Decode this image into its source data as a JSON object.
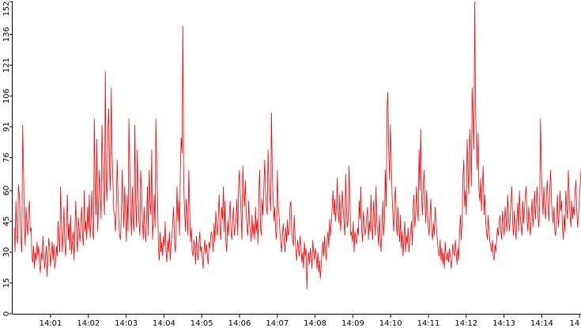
{
  "chart_data": {
    "type": "line",
    "title": "",
    "xlabel": "",
    "ylabel": "",
    "ylim": [
      0,
      152
    ],
    "xlim_minutes": [
      14.0,
      14.933
    ],
    "grid": false,
    "legend": "none",
    "colors": {
      "line": "#ff0000",
      "axis": "#000000",
      "background": "#ffffff"
    },
    "y_ticks": [
      {
        "value": 0,
        "label": "0"
      },
      {
        "value": 15,
        "label": "15"
      },
      {
        "value": 30,
        "label": "30"
      },
      {
        "value": 45,
        "label": "45"
      },
      {
        "value": 60,
        "label": "60"
      },
      {
        "value": 76,
        "label": "76"
      },
      {
        "value": 91,
        "label": "91"
      },
      {
        "value": 106,
        "label": "106"
      },
      {
        "value": 121,
        "label": "121"
      },
      {
        "value": 136,
        "label": "136"
      },
      {
        "value": 152,
        "label": "152"
      }
    ],
    "x_ticks": [
      {
        "label": "14:01",
        "minute": 1
      },
      {
        "label": "14:02",
        "minute": 2
      },
      {
        "label": "14:03",
        "minute": 3
      },
      {
        "label": "14:04",
        "minute": 4
      },
      {
        "label": "14:05",
        "minute": 5
      },
      {
        "label": "14:06",
        "minute": 6
      },
      {
        "label": "14:07",
        "minute": 7
      },
      {
        "label": "14:08",
        "minute": 8
      },
      {
        "label": "14:09",
        "minute": 9
      },
      {
        "label": "14:10",
        "minute": 10
      },
      {
        "label": "14:11",
        "minute": 11
      },
      {
        "label": "14:12",
        "minute": 12
      },
      {
        "label": "14:13",
        "minute": 13
      },
      {
        "label": "14:14",
        "minute": 14
      },
      {
        "label": "14",
        "minute": 15
      }
    ],
    "series": [
      {
        "values": [
          42,
          30,
          55,
          38,
          34,
          63,
          58,
          48,
          36,
          30,
          92,
          70,
          45,
          33,
          52,
          44,
          38,
          49,
          55,
          40,
          42,
          28,
          25,
          33,
          22,
          30,
          26,
          35,
          28,
          33,
          24,
          20,
          30,
          26,
          38,
          29,
          22,
          27,
          33,
          18,
          28,
          37,
          32,
          23,
          29,
          35,
          26,
          34,
          22,
          25,
          33,
          28,
          45,
          36,
          30,
          62,
          44,
          30,
          40,
          52,
          33,
          28,
          42,
          58,
          36,
          44,
          31,
          48,
          29,
          35,
          40,
          26,
          42,
          55,
          38,
          30,
          47,
          41,
          35,
          44,
          52,
          38,
          33,
          60,
          40,
          45,
          36,
          52,
          41,
          58,
          37,
          45,
          60,
          40,
          36,
          95,
          62,
          48,
          85,
          40,
          54,
          70,
          58,
          46,
          92,
          75,
          60,
          48,
          118,
          65,
          55,
          88,
          100,
          72,
          60,
          110,
          78,
          65,
          50,
          48,
          40,
          52,
          75,
          60,
          45,
          38,
          36,
          48,
          70,
          55,
          42,
          62,
          50,
          35,
          58,
          40,
          95,
          70,
          50,
          38,
          62,
          46,
          40,
          92,
          54,
          42,
          80,
          58,
          44,
          38,
          70,
          60,
          45,
          36,
          52,
          40,
          35,
          48,
          62,
          38,
          70,
          55,
          48,
          80,
          36,
          45,
          58,
          42,
          95,
          70,
          55,
          32,
          26,
          40,
          30,
          35,
          28,
          38,
          33,
          45,
          30,
          25,
          36,
          30,
          40,
          26,
          34,
          38,
          45,
          52,
          36,
          30,
          40,
          62,
          45,
          55,
          38,
          70,
          86,
          78,
          140,
          62,
          50,
          40,
          56,
          48,
          38,
          70,
          52,
          35,
          42,
          30,
          28,
          36,
          33,
          24,
          38,
          30,
          26,
          34,
          40,
          30,
          33,
          27,
          22,
          31,
          36,
          29,
          34,
          28,
          24,
          35,
          32,
          38,
          40,
          36,
          30,
          44,
          35,
          50,
          42,
          38,
          48,
          58,
          42,
          36,
          52,
          46,
          62,
          40,
          55,
          35,
          30,
          45,
          38,
          48,
          55,
          40,
          36,
          46,
          52,
          38,
          42,
          45,
          56,
          38,
          62,
          70,
          58,
          48,
          36,
          72,
          60,
          52,
          65,
          50,
          42,
          38,
          55,
          44,
          40,
          35,
          48,
          38,
          44,
          36,
          52,
          40,
          46,
          34,
          58,
          70,
          42,
          38,
          56,
          48,
          62,
          75,
          60,
          52,
          48,
          80,
          62,
          58,
          50,
          98,
          68,
          56,
          45,
          52,
          40,
          36,
          70,
          52,
          48,
          40,
          35,
          30,
          38,
          44,
          36,
          30,
          42,
          35,
          46,
          38,
          40,
          52,
          55,
          40,
          36,
          33,
          48,
          38,
          30,
          26,
          36,
          32,
          28,
          38,
          33,
          25,
          30,
          22,
          35,
          28,
          32,
          12,
          26,
          30,
          24,
          32,
          28,
          22,
          36,
          30,
          26,
          32,
          28,
          22,
          30,
          20,
          26,
          17,
          24,
          30,
          35,
          28,
          38,
          30,
          26,
          36,
          40,
          32,
          46,
          38,
          44,
          52,
          60,
          48,
          56,
          45,
          52,
          66,
          50,
          44,
          58,
          40,
          48,
          60,
          52,
          44,
          38,
          68,
          50,
          42,
          46,
          72,
          54,
          38,
          40,
          35,
          45,
          30,
          40,
          36,
          34,
          42,
          38,
          55,
          46,
          62,
          40,
          35,
          50,
          44,
          38,
          42,
          48,
          52,
          36,
          45,
          40,
          58,
          42,
          36,
          55,
          48,
          38,
          62,
          44,
          40,
          33,
          48,
          36,
          30,
          42,
          55,
          38,
          46,
          70,
          52,
          100,
          108,
          80,
          65,
          92,
          75,
          58,
          48,
          40,
          55,
          62,
          45,
          38,
          52,
          42,
          35,
          48,
          32,
          40,
          28,
          36,
          45,
          30,
          38,
          34,
          42,
          30,
          36,
          40,
          45,
          33,
          52,
          58,
          42,
          48,
          62,
          52,
          45,
          80,
          60,
          90,
          58,
          48,
          62,
          70,
          54,
          44,
          60,
          50,
          42,
          38,
          48,
          56,
          40,
          36,
          44,
          38,
          52,
          46,
          40,
          34,
          30,
          28,
          36,
          26,
          32,
          24,
          30,
          22,
          35,
          28,
          26,
          30,
          25,
          32,
          28,
          22,
          26,
          34,
          30,
          28,
          36,
          30,
          24,
          32,
          26,
          40,
          48,
          36,
          45,
          66,
          75,
          52,
          60,
          48,
          85,
          70,
          58,
          90,
          78,
          62,
          110,
          95,
          80,
          152,
          100,
          80,
          70,
          88,
          60,
          55,
          66,
          50,
          62,
          72,
          48,
          58,
          45,
          40,
          36,
          48,
          40,
          35,
          33,
          30,
          36,
          28,
          26,
          34,
          30,
          36,
          42,
          38,
          44,
          48,
          40,
          36,
          50,
          44,
          38,
          52,
          46,
          40,
          58,
          48,
          40,
          46,
          55,
          62,
          44,
          38,
          50,
          42,
          36,
          46,
          54,
          40,
          60,
          48,
          42,
          38,
          55,
          44,
          50,
          58,
          62,
          46,
          40,
          52,
          44,
          38,
          48,
          56,
          42,
          50,
          60,
          46,
          55,
          62,
          48,
          42,
          52,
          95,
          70,
          58,
          48,
          62,
          52,
          46,
          58,
          65,
          52,
          45,
          60,
          70,
          55,
          48,
          44,
          52,
          40,
          38,
          46,
          58,
          42,
          48,
          60,
          50,
          55,
          42,
          36,
          48,
          40,
          60,
          52,
          46,
          70,
          58,
          48,
          42,
          55,
          46,
          52,
          48,
          60,
          65,
          50,
          42,
          48,
          56,
          62,
          70
        ]
      }
    ]
  }
}
